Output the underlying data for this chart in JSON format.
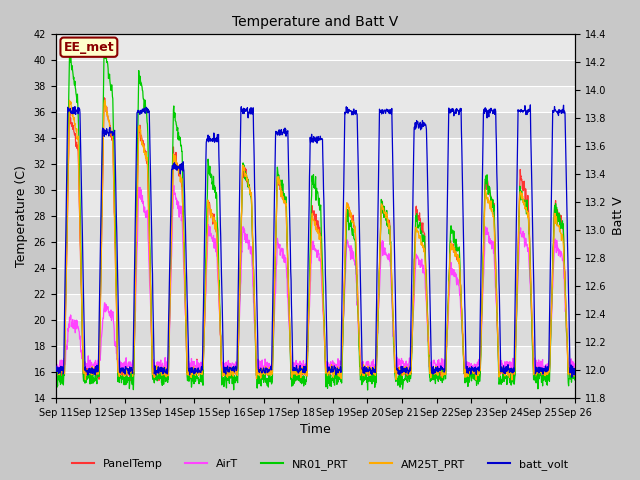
{
  "title": "Temperature and Batt V",
  "xlabel": "Time",
  "ylabel_left": "Temperature (C)",
  "ylabel_right": "Batt V",
  "ylim_left": [
    14,
    42
  ],
  "ylim_right": [
    11.8,
    14.4
  ],
  "yticks_left": [
    14,
    16,
    18,
    20,
    22,
    24,
    26,
    28,
    30,
    32,
    34,
    36,
    38,
    40,
    42
  ],
  "yticks_right": [
    11.8,
    12.0,
    12.2,
    12.4,
    12.6,
    12.8,
    13.0,
    13.2,
    13.4,
    13.6,
    13.8,
    14.0,
    14.2,
    14.4
  ],
  "xtick_labels": [
    "Sep 11",
    "Sep 12",
    "Sep 13",
    "Sep 14",
    "Sep 15",
    "Sep 16",
    "Sep 17",
    "Sep 18",
    "Sep 19",
    "Sep 20",
    "Sep 21",
    "Sep 22",
    "Sep 23",
    "Sep 24",
    "Sep 25",
    "Sep 26"
  ],
  "annotation_text": "EE_met",
  "annotation_fg": "#8B0000",
  "annotation_bg": "#FFFFCC",
  "fig_bg": "#C8C8C8",
  "axes_bg": "#E8E8E8",
  "band_bg_light": "#DCDCDC",
  "band_bg_dark": "#E8E8E8",
  "grid_color": "#FFFFFF",
  "colors": {
    "PanelTemp": "#FF3333",
    "AirT": "#FF44FF",
    "NR01_PRT": "#00CC00",
    "AM25T_PRT": "#FFAA00",
    "batt_volt": "#0000CC"
  },
  "linewidth": 0.9,
  "title_fontsize": 10,
  "tick_fontsize": 7,
  "label_fontsize": 9,
  "legend_fontsize": 8
}
